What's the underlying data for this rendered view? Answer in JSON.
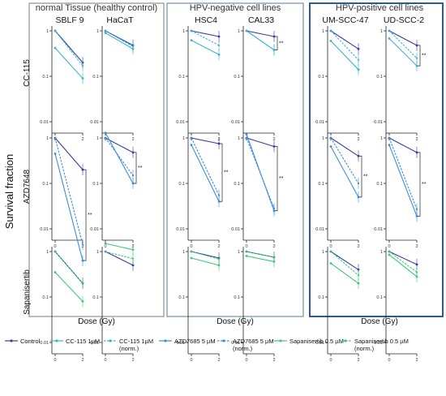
{
  "figure": {
    "y_title": "Survival fraction",
    "x_title": "Dose (Gy)",
    "group_titles": [
      "normal Tissue (healthy control)",
      "HPV-negative cell lines",
      "HPV-positive cell lines"
    ],
    "row_labels": [
      "CC-115",
      "AZD7648",
      "Sapanisertib"
    ],
    "column_labels": [
      "SBLF 9",
      "HaCaT",
      "HSC4",
      "CAL33",
      "UM-SCC-47",
      "UD-SCC-2"
    ],
    "y_tick_labels": [
      "1",
      "0.1",
      "0.01"
    ],
    "x_tick_labels": [
      "0",
      "2"
    ],
    "significance_mark": "**",
    "colors": {
      "control": "#3a3aa8",
      "cc115": "#3bb3d4",
      "azd7685": "#3d8ddf",
      "sapanisertib": "#3fc978",
      "group_frames": [
        "#a6a6a6",
        "#8aa5bf",
        "#2a5b9e"
      ]
    }
  },
  "legend": [
    {
      "label": "Control",
      "color": "#3a3aa8",
      "dashed": false
    },
    {
      "label": "CC-115 1µM",
      "color": "#3bb3d4",
      "dashed": false
    },
    {
      "label": "CC-115 1µM (norm.)",
      "color": "#3bb3d4",
      "dashed": true
    },
    {
      "label": "AZD7685 5 µM",
      "color": "#3d8ddf",
      "dashed": false
    },
    {
      "label": "AZD7685 5 µM (norm.)",
      "color": "#3d8ddf",
      "dashed": true
    },
    {
      "label": "Sapanisertib 0.5 µM",
      "color": "#3fc978",
      "dashed": false
    },
    {
      "label": "Sapanisertib 0.5 µM (norm.)",
      "color": "#3fc978",
      "dashed": true
    }
  ],
  "chart_data": {
    "type": "line",
    "x": [
      0,
      2
    ],
    "xlabel": "Dose (Gy)",
    "ylabel": "Survival fraction",
    "yscale": "log",
    "ylim": [
      0.001,
      2
    ],
    "panels": [
      {
        "row": "CC-115",
        "cell_line": "SBLF 9",
        "series": [
          {
            "name": "Control",
            "values": [
              1.0,
              0.2
            ]
          },
          {
            "name": "CC-115 1µM",
            "values": [
              0.42,
              0.09
            ]
          },
          {
            "name": "CC-115 1µM (norm.)",
            "values": [
              1.0,
              0.17
            ]
          }
        ]
      },
      {
        "row": "CC-115",
        "cell_line": "HaCaT",
        "series": [
          {
            "name": "Control",
            "values": [
              1.0,
              0.48
            ]
          },
          {
            "name": "CC-115 1µM",
            "values": [
              0.9,
              0.4
            ]
          },
          {
            "name": "CC-115 1µM (norm.)",
            "values": [
              1.0,
              0.45
            ]
          }
        ]
      },
      {
        "row": "CC-115",
        "cell_line": "HSC4",
        "series": [
          {
            "name": "Control",
            "values": [
              1.0,
              0.75
            ]
          },
          {
            "name": "CC-115 1µM",
            "values": [
              0.62,
              0.3
            ]
          },
          {
            "name": "CC-115 1µM (norm.)",
            "values": [
              1.0,
              0.48
            ]
          }
        ]
      },
      {
        "row": "CC-115",
        "cell_line": "CAL33",
        "series": [
          {
            "name": "Control",
            "values": [
              1.0,
              0.75
            ]
          },
          {
            "name": "CC-115 1µM",
            "values": [
              1.0,
              0.38
            ]
          },
          {
            "name": "CC-115 1µM (norm.)",
            "values": [
              1.0,
              0.38
            ]
          }
        ],
        "significant": true
      },
      {
        "row": "CC-115",
        "cell_line": "UM-SCC-47",
        "series": [
          {
            "name": "Control",
            "values": [
              1.0,
              0.4
            ]
          },
          {
            "name": "CC-115 1µM",
            "values": [
              0.6,
              0.14
            ]
          },
          {
            "name": "CC-115 1µM (norm.)",
            "values": [
              1.0,
              0.23
            ]
          }
        ]
      },
      {
        "row": "CC-115",
        "cell_line": "UD-SCC-2",
        "series": [
          {
            "name": "Control",
            "values": [
              1.0,
              0.48
            ]
          },
          {
            "name": "CC-115 1µM",
            "values": [
              0.68,
              0.17
            ]
          },
          {
            "name": "CC-115 1µM (norm.)",
            "values": [
              1.0,
              0.25
            ]
          }
        ],
        "significant": true
      },
      {
        "row": "AZD7648",
        "cell_line": "SBLF 9",
        "series": [
          {
            "name": "Control",
            "values": [
              1.0,
              0.2
            ]
          },
          {
            "name": "AZD7685 5 µM",
            "values": [
              0.45,
              0.002
            ]
          },
          {
            "name": "AZD7685 5 µM (norm.)",
            "values": [
              1.0,
              0.0045
            ]
          }
        ],
        "significant": true
      },
      {
        "row": "AZD7648",
        "cell_line": "HaCaT",
        "series": [
          {
            "name": "Control",
            "values": [
              1.0,
              0.48
            ]
          },
          {
            "name": "AZD7685 5 µM",
            "values": [
              1.3,
              0.1
            ]
          },
          {
            "name": "AZD7685 5 µM (norm.)",
            "values": [
              1.0,
              0.15
            ]
          }
        ],
        "significant": true
      },
      {
        "row": "AZD7648",
        "cell_line": "HSC4",
        "series": [
          {
            "name": "Control",
            "values": [
              1.0,
              0.75
            ]
          },
          {
            "name": "AZD7685 5 µM",
            "values": [
              0.7,
              0.04
            ]
          },
          {
            "name": "AZD7685 5 µM (norm.)",
            "values": [
              1.0,
              0.055
            ]
          }
        ],
        "significant": true
      },
      {
        "row": "AZD7648",
        "cell_line": "CAL33",
        "series": [
          {
            "name": "Control",
            "values": [
              1.0,
              0.65
            ]
          },
          {
            "name": "AZD7685 5 µM",
            "values": [
              1.2,
              0.025
            ]
          },
          {
            "name": "AZD7685 5 µM (norm.)",
            "values": [
              1.0,
              0.028
            ]
          }
        ],
        "significant": true
      },
      {
        "row": "AZD7648",
        "cell_line": "UM-SCC-47",
        "series": [
          {
            "name": "Control",
            "values": [
              1.0,
              0.4
            ]
          },
          {
            "name": "AZD7685 5 µM",
            "values": [
              0.65,
              0.05
            ]
          },
          {
            "name": "AZD7685 5 µM (norm.)",
            "values": [
              1.0,
              0.1
            ]
          }
        ],
        "significant": true
      },
      {
        "row": "AZD7648",
        "cell_line": "UD-SCC-2",
        "series": [
          {
            "name": "Control",
            "values": [
              1.0,
              0.48
            ]
          },
          {
            "name": "AZD7685 5 µM",
            "values": [
              0.7,
              0.019
            ]
          },
          {
            "name": "AZD7685 5 µM (norm.)",
            "values": [
              1.0,
              0.027
            ]
          }
        ],
        "significant": true
      },
      {
        "row": "Sapanisertib",
        "cell_line": "SBLF 9",
        "series": [
          {
            "name": "Control",
            "values": [
              1.0,
              0.2
            ]
          },
          {
            "name": "Sapanisertib 0.5 µM",
            "values": [
              0.35,
              0.08
            ]
          },
          {
            "name": "Sapanisertib 0.5 µM (norm.)",
            "values": [
              1.0,
              0.2
            ]
          }
        ]
      },
      {
        "row": "Sapanisertib",
        "cell_line": "HaCaT",
        "series": [
          {
            "name": "Control",
            "values": [
              1.0,
              0.5
            ]
          },
          {
            "name": "Sapanisertib 0.5 µM",
            "values": [
              1.5,
              1.1
            ]
          },
          {
            "name": "Sapanisertib 0.5 µM (norm.)",
            "values": [
              1.0,
              0.7
            ]
          }
        ]
      },
      {
        "row": "Sapanisertib",
        "cell_line": "HSC4",
        "series": [
          {
            "name": "Control",
            "values": [
              1.0,
              0.72
            ]
          },
          {
            "name": "Sapanisertib 0.5 µM",
            "values": [
              0.72,
              0.5
            ]
          },
          {
            "name": "Sapanisertib 0.5 µM (norm.)",
            "values": [
              1.0,
              0.68
            ]
          }
        ]
      },
      {
        "row": "Sapanisertib",
        "cell_line": "CAL33",
        "series": [
          {
            "name": "Control",
            "values": [
              1.0,
              0.75
            ]
          },
          {
            "name": "Sapanisertib 0.5 µM",
            "values": [
              0.8,
              0.6
            ]
          },
          {
            "name": "Sapanisertib 0.5 µM (norm.)",
            "values": [
              1.0,
              0.75
            ]
          }
        ]
      },
      {
        "row": "Sapanisertib",
        "cell_line": "UM-SCC-47",
        "series": [
          {
            "name": "Control",
            "values": [
              1.0,
              0.4
            ]
          },
          {
            "name": "Sapanisertib 0.5 µM",
            "values": [
              0.55,
              0.2
            ]
          },
          {
            "name": "Sapanisertib 0.5 µM (norm.)",
            "values": [
              1.0,
              0.3
            ]
          }
        ]
      },
      {
        "row": "Sapanisertib",
        "cell_line": "UD-SCC-2",
        "series": [
          {
            "name": "Control",
            "values": [
              1.0,
              0.52
            ]
          },
          {
            "name": "Sapanisertib 0.5 µM",
            "values": [
              0.85,
              0.28
            ]
          },
          {
            "name": "Sapanisertib 0.5 µM (norm.)",
            "values": [
              1.0,
              0.35
            ]
          }
        ]
      }
    ]
  }
}
